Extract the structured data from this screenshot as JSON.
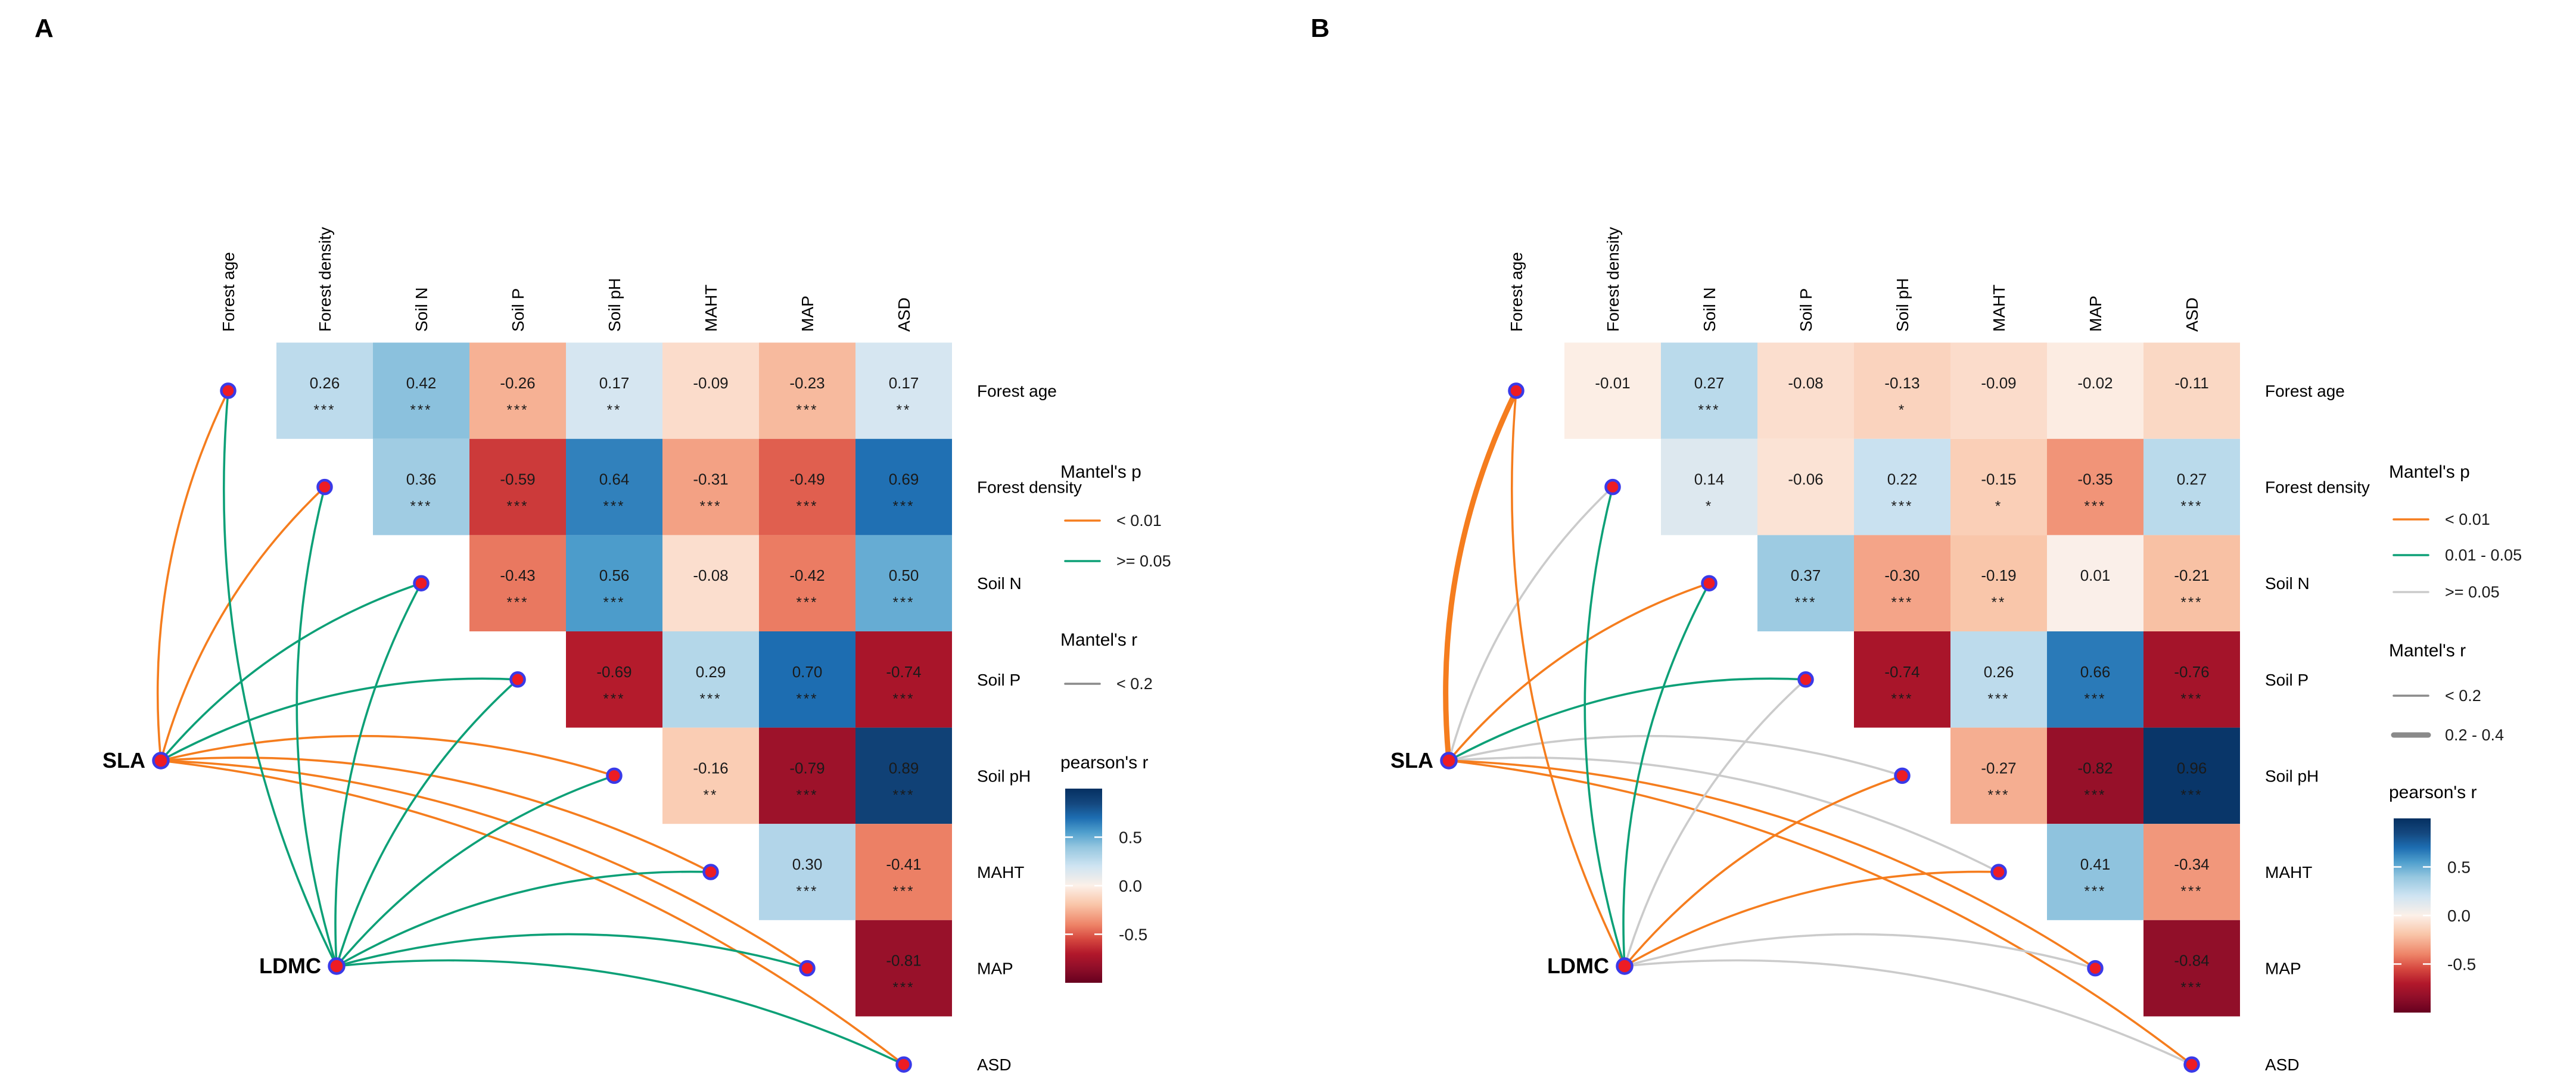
{
  "chart_data": [
    {
      "type": "heatmap",
      "panel_label": "A",
      "variables": [
        "Forest age",
        "Forest density",
        "Soil N",
        "Soil P",
        "Soil pH",
        "MAHT",
        "MAP",
        "ASD"
      ],
      "trait_nodes": [
        "SLA",
        "LDMC"
      ],
      "matrix_note": "upper triangle pearson r, row i vs columns i+1..7",
      "rows": [
        {
          "name": "Forest age",
          "values": [
            0.26,
            0.42,
            -0.26,
            0.17,
            -0.09,
            -0.23,
            0.17
          ],
          "sig": [
            "***",
            "***",
            "***",
            "**",
            "",
            "***",
            "**"
          ]
        },
        {
          "name": "Forest density",
          "values": [
            0.36,
            -0.59,
            0.64,
            -0.31,
            -0.49,
            0.69
          ],
          "sig": [
            "***",
            "***",
            "***",
            "***",
            "***",
            "***"
          ]
        },
        {
          "name": "Soil N",
          "values": [
            -0.43,
            0.56,
            -0.08,
            -0.42,
            0.5
          ],
          "sig": [
            "***",
            "***",
            "",
            "***",
            "***"
          ]
        },
        {
          "name": "Soil P",
          "values": [
            -0.69,
            0.29,
            0.7,
            -0.74
          ],
          "sig": [
            "***",
            "***",
            "***",
            "***"
          ]
        },
        {
          "name": "Soil pH",
          "values": [
            -0.16,
            -0.79,
            0.89
          ],
          "sig": [
            "**",
            "***",
            "***"
          ]
        },
        {
          "name": "MAHT",
          "values": [
            0.3,
            -0.41
          ],
          "sig": [
            "***",
            "***"
          ]
        },
        {
          "name": "MAP",
          "values": [
            -0.81
          ],
          "sig": [
            "***"
          ]
        },
        {
          "name": "ASD",
          "values": [],
          "sig": []
        }
      ],
      "mantel_links": [
        {
          "trait": "SLA",
          "env": "Forest age",
          "p": "< 0.01",
          "r": "< 0.2"
        },
        {
          "trait": "SLA",
          "env": "Forest density",
          "p": "< 0.01",
          "r": "< 0.2"
        },
        {
          "trait": "SLA",
          "env": "Soil N",
          "p": ">= 0.05",
          "r": "< 0.2"
        },
        {
          "trait": "SLA",
          "env": "Soil P",
          "p": ">= 0.05",
          "r": "< 0.2"
        },
        {
          "trait": "SLA",
          "env": "Soil pH",
          "p": "< 0.01",
          "r": "< 0.2"
        },
        {
          "trait": "SLA",
          "env": "MAHT",
          "p": "< 0.01",
          "r": "< 0.2"
        },
        {
          "trait": "SLA",
          "env": "MAP",
          "p": "< 0.01",
          "r": "< 0.2"
        },
        {
          "trait": "SLA",
          "env": "ASD",
          "p": "< 0.01",
          "r": "< 0.2"
        },
        {
          "trait": "LDMC",
          "env": "Forest age",
          "p": ">= 0.05",
          "r": "< 0.2"
        },
        {
          "trait": "LDMC",
          "env": "Forest density",
          "p": ">= 0.05",
          "r": "< 0.2"
        },
        {
          "trait": "LDMC",
          "env": "Soil N",
          "p": ">= 0.05",
          "r": "< 0.2"
        },
        {
          "trait": "LDMC",
          "env": "Soil P",
          "p": ">= 0.05",
          "r": "< 0.2"
        },
        {
          "trait": "LDMC",
          "env": "Soil pH",
          "p": ">= 0.05",
          "r": "< 0.2"
        },
        {
          "trait": "LDMC",
          "env": "MAHT",
          "p": ">= 0.05",
          "r": "< 0.2"
        },
        {
          "trait": "LDMC",
          "env": "MAP",
          "p": ">= 0.05",
          "r": "< 0.2"
        },
        {
          "trait": "LDMC",
          "env": "ASD",
          "p": ">= 0.05",
          "r": "< 0.2"
        }
      ],
      "legend": {
        "mantel_p_title": "Mantel's p",
        "mantel_p_items": [
          {
            "label": "< 0.01",
            "color": "#F57D1E"
          },
          {
            "label": ">= 0.05",
            "color": "#0DA077"
          }
        ],
        "mantel_r_title": "Mantel's r",
        "mantel_r_items": [
          {
            "label": "< 0.2",
            "width": "thin"
          }
        ],
        "pearson_title": "pearson's r",
        "pearson_ticks": [
          "0.5",
          "0.0",
          "-0.5"
        ]
      }
    },
    {
      "type": "heatmap",
      "panel_label": "B",
      "variables": [
        "Forest age",
        "Forest density",
        "Soil N",
        "Soil P",
        "Soil pH",
        "MAHT",
        "MAP",
        "ASD"
      ],
      "trait_nodes": [
        "SLA",
        "LDMC"
      ],
      "matrix_note": "upper triangle pearson r, row i vs columns i+1..7",
      "rows": [
        {
          "name": "Forest age",
          "values": [
            -0.01,
            0.27,
            -0.08,
            -0.13,
            -0.09,
            -0.02,
            -0.11
          ],
          "sig": [
            "",
            "***",
            "",
            "*",
            "",
            "",
            ""
          ]
        },
        {
          "name": "Forest density",
          "values": [
            0.14,
            -0.06,
            0.22,
            -0.15,
            -0.35,
            0.27
          ],
          "sig": [
            "*",
            "",
            "***",
            "*",
            "***",
            "***"
          ]
        },
        {
          "name": "Soil N",
          "values": [
            0.37,
            -0.3,
            -0.19,
            0.01,
            -0.21
          ],
          "sig": [
            "***",
            "***",
            "**",
            "",
            "***"
          ]
        },
        {
          "name": "Soil P",
          "values": [
            -0.74,
            0.26,
            0.66,
            -0.76
          ],
          "sig": [
            "***",
            "***",
            "***",
            "***"
          ]
        },
        {
          "name": "Soil pH",
          "values": [
            -0.27,
            -0.82,
            0.96
          ],
          "sig": [
            "***",
            "***",
            "***"
          ]
        },
        {
          "name": "MAHT",
          "values": [
            0.41,
            -0.34
          ],
          "sig": [
            "***",
            "***"
          ]
        },
        {
          "name": "MAP",
          "values": [
            -0.84
          ],
          "sig": [
            "***"
          ]
        },
        {
          "name": "ASD",
          "values": [],
          "sig": []
        }
      ],
      "mantel_links": [
        {
          "trait": "SLA",
          "env": "Forest age",
          "p": "< 0.01",
          "r": "0.2 - 0.4"
        },
        {
          "trait": "SLA",
          "env": "Forest density",
          "p": ">= 0.05",
          "r": "< 0.2"
        },
        {
          "trait": "SLA",
          "env": "Soil N",
          "p": "< 0.01",
          "r": "< 0.2"
        },
        {
          "trait": "SLA",
          "env": "Soil P",
          "p": "0.01 - 0.05",
          "r": "< 0.2"
        },
        {
          "trait": "SLA",
          "env": "Soil pH",
          "p": ">= 0.05",
          "r": "< 0.2"
        },
        {
          "trait": "SLA",
          "env": "MAHT",
          "p": ">= 0.05",
          "r": "< 0.2"
        },
        {
          "trait": "SLA",
          "env": "MAP",
          "p": "< 0.01",
          "r": "< 0.2"
        },
        {
          "trait": "SLA",
          "env": "ASD",
          "p": "< 0.01",
          "r": "< 0.2"
        },
        {
          "trait": "LDMC",
          "env": "Forest age",
          "p": "< 0.01",
          "r": "< 0.2"
        },
        {
          "trait": "LDMC",
          "env": "Forest density",
          "p": "0.01 - 0.05",
          "r": "< 0.2"
        },
        {
          "trait": "LDMC",
          "env": "Soil N",
          "p": "0.01 - 0.05",
          "r": "< 0.2"
        },
        {
          "trait": "LDMC",
          "env": "Soil P",
          "p": ">= 0.05",
          "r": "< 0.2"
        },
        {
          "trait": "LDMC",
          "env": "Soil pH",
          "p": "< 0.01",
          "r": "< 0.2"
        },
        {
          "trait": "LDMC",
          "env": "MAHT",
          "p": "< 0.01",
          "r": "< 0.2"
        },
        {
          "trait": "LDMC",
          "env": "MAP",
          "p": ">= 0.05",
          "r": "< 0.2"
        },
        {
          "trait": "LDMC",
          "env": "ASD",
          "p": ">= 0.05",
          "r": "< 0.2"
        }
      ],
      "legend": {
        "mantel_p_title": "Mantel's p",
        "mantel_p_items": [
          {
            "label": "< 0.01",
            "color": "#F57D1E"
          },
          {
            "label": "0.01 - 0.05",
            "color": "#0DA077"
          },
          {
            "label": ">= 0.05",
            "color": "#CBCBCB"
          }
        ],
        "mantel_r_title": "Mantel's r",
        "mantel_r_items": [
          {
            "label": "< 0.2",
            "width": "thin"
          },
          {
            "label": "0.2 - 0.4",
            "width": "thick"
          }
        ],
        "pearson_title": "pearson's r",
        "pearson_ticks": [
          "0.5",
          "0.0",
          "-0.5"
        ]
      }
    }
  ],
  "colors": {
    "link_orange": "#F57D1E",
    "link_green": "#0DA077",
    "link_gray": "#CBCBCB",
    "node_fill": "#ED1C24",
    "node_stroke": "#3A3AE8",
    "legend_r_line": "#8A8A8A",
    "text": "#1A1A1A",
    "pearson_scale": [
      {
        "r": -1.0,
        "hex": "#67001f"
      },
      {
        "r": -0.85,
        "hex": "#8f0e29"
      },
      {
        "r": -0.7,
        "hex": "#b2182b"
      },
      {
        "r": -0.55,
        "hex": "#d6473f"
      },
      {
        "r": -0.4,
        "hex": "#ee8468"
      },
      {
        "r": -0.2,
        "hex": "#f9c4a7"
      },
      {
        "r": 0.0,
        "hex": "#fcf0e8"
      },
      {
        "r": 0.2,
        "hex": "#cfe4f2"
      },
      {
        "r": 0.4,
        "hex": "#94c6df"
      },
      {
        "r": 0.55,
        "hex": "#4f9fcd"
      },
      {
        "r": 0.7,
        "hex": "#1d6db1"
      },
      {
        "r": 0.85,
        "hex": "#14477e"
      },
      {
        "r": 1.0,
        "hex": "#053061"
      }
    ]
  }
}
